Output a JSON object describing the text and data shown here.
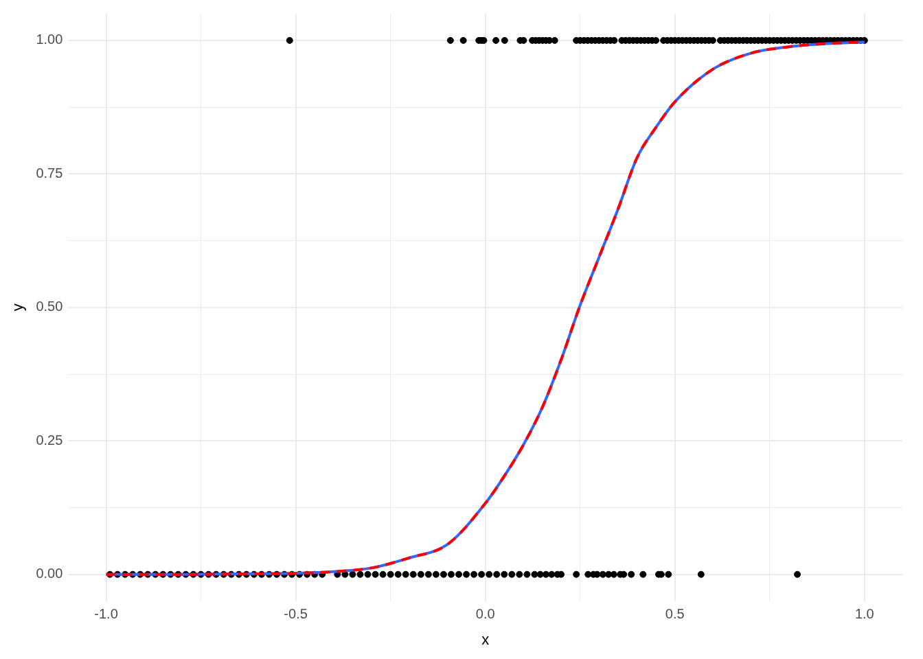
{
  "chart_data": {
    "type": "scatter",
    "xlabel": "x",
    "ylabel": "y",
    "xlim": [
      -1.1,
      1.1
    ],
    "ylim": [
      -0.05,
      1.05
    ],
    "xticks": [
      {
        "value": -1,
        "label": "-1.0"
      },
      {
        "value": -0.75,
        "label": null
      },
      {
        "value": -0.5,
        "label": "-0.5"
      },
      {
        "value": -0.25,
        "label": null
      },
      {
        "value": 0,
        "label": "0.0"
      },
      {
        "value": 0.25,
        "label": null
      },
      {
        "value": 0.5,
        "label": "0.5"
      },
      {
        "value": 0.75,
        "label": null
      },
      {
        "value": 1,
        "label": "1.0"
      }
    ],
    "yticks": [
      {
        "value": 0,
        "label": "0.00"
      },
      {
        "value": 0.125,
        "label": null
      },
      {
        "value": 0.25,
        "label": "0.25"
      },
      {
        "value": 0.375,
        "label": null
      },
      {
        "value": 0.5,
        "label": "0.50"
      },
      {
        "value": 0.625,
        "label": null
      },
      {
        "value": 0.75,
        "label": "0.75"
      },
      {
        "value": 0.875,
        "label": null
      },
      {
        "value": 1,
        "label": "1.00"
      }
    ],
    "grid": true,
    "legend": false,
    "series": [
      {
        "type": "scatter",
        "color": "#000000",
        "marker": "circle",
        "x": [
          -0.516,
          -0.092,
          -0.058,
          -0.017,
          -0.01,
          -0.004,
          0.028,
          0.051,
          0.092,
          0.101,
          0.124,
          0.133,
          0.142,
          0.151,
          0.16,
          0.169,
          0.183,
          0.24,
          0.25,
          0.26,
          0.27,
          0.28,
          0.29,
          0.3,
          0.31,
          0.32,
          0.33,
          0.34,
          0.36,
          0.37,
          0.38,
          0.39,
          0.4,
          0.41,
          0.42,
          0.43,
          0.44,
          0.45,
          0.47,
          0.48,
          0.49,
          0.5,
          0.51,
          0.52,
          0.53,
          0.54,
          0.55,
          0.56,
          0.57,
          0.58,
          0.59,
          0.6,
          0.62,
          0.63,
          0.64,
          0.65,
          0.66,
          0.67,
          0.68,
          0.69,
          0.7,
          0.71,
          0.72,
          0.73,
          0.74,
          0.75,
          0.76,
          0.77,
          0.78,
          0.79,
          0.8,
          0.81,
          0.82,
          0.83,
          0.84,
          0.85,
          0.86,
          0.87,
          0.88,
          0.89,
          0.9,
          0.91,
          0.92,
          0.93,
          0.94,
          0.95,
          0.96,
          0.97,
          0.98,
          0.99,
          1.0,
          -0.99,
          -0.97,
          -0.95,
          -0.93,
          -0.91,
          -0.89,
          -0.87,
          -0.85,
          -0.83,
          -0.81,
          -0.79,
          -0.77,
          -0.75,
          -0.73,
          -0.71,
          -0.69,
          -0.67,
          -0.65,
          -0.63,
          -0.61,
          -0.59,
          -0.57,
          -0.55,
          -0.53,
          -0.51,
          -0.49,
          -0.47,
          -0.45,
          -0.43,
          -0.39,
          -0.37,
          -0.35,
          -0.33,
          -0.31,
          -0.29,
          -0.27,
          -0.25,
          -0.23,
          -0.21,
          -0.19,
          -0.17,
          -0.15,
          -0.13,
          -0.11,
          -0.09,
          -0.07,
          -0.05,
          -0.03,
          -0.01,
          0.01,
          0.03,
          0.05,
          0.07,
          0.09,
          0.11,
          0.13,
          0.145,
          0.16,
          0.175,
          0.19,
          0.2,
          0.24,
          0.271,
          0.285,
          0.295,
          0.31,
          0.325,
          0.339,
          0.356,
          0.365,
          0.385,
          0.416,
          0.457,
          0.464,
          0.483,
          0.569,
          0.823
        ],
        "values": [
          1,
          1,
          1,
          1,
          1,
          1,
          1,
          1,
          1,
          1,
          1,
          1,
          1,
          1,
          1,
          1,
          1,
          1,
          1,
          1,
          1,
          1,
          1,
          1,
          1,
          1,
          1,
          1,
          1,
          1,
          1,
          1,
          1,
          1,
          1,
          1,
          1,
          1,
          1,
          1,
          1,
          1,
          1,
          1,
          1,
          1,
          1,
          1,
          1,
          1,
          1,
          1,
          1,
          1,
          1,
          1,
          1,
          1,
          1,
          1,
          1,
          1,
          1,
          1,
          1,
          1,
          1,
          1,
          1,
          1,
          1,
          1,
          1,
          1,
          1,
          1,
          1,
          1,
          1,
          1,
          1,
          1,
          1,
          1,
          1,
          1,
          1,
          1,
          1,
          1,
          1,
          0,
          0,
          0,
          0,
          0,
          0,
          0,
          0,
          0,
          0,
          0,
          0,
          0,
          0,
          0,
          0,
          0,
          0,
          0,
          0,
          0,
          0,
          0,
          0,
          0,
          0,
          0,
          0,
          0,
          0,
          0,
          0,
          0,
          0,
          0,
          0,
          0,
          0,
          0,
          0,
          0,
          0,
          0,
          0,
          0,
          0,
          0,
          0,
          0,
          0,
          0,
          0,
          0,
          0,
          0,
          0,
          0,
          0,
          0,
          0,
          0,
          0,
          0,
          0,
          0,
          0,
          0,
          0,
          0,
          0,
          0,
          0,
          0,
          0,
          0,
          0,
          0
        ]
      },
      {
        "type": "line",
        "color": "#3366ff",
        "line_style": "solid",
        "marker": "none",
        "x": [
          -1,
          -0.8,
          -0.6,
          -0.5,
          -0.4,
          -0.3,
          -0.2,
          -0.1,
          0,
          0.05,
          0.1,
          0.15,
          0.2,
          0.25,
          0.3,
          0.35,
          0.4,
          0.45,
          0.5,
          0.6,
          0.7,
          0.8,
          0.9,
          1
        ],
        "values": [
          0,
          0,
          0.001,
          0.002,
          0.005,
          0.012,
          0.031,
          0.056,
          0.133,
          0.184,
          0.242,
          0.312,
          0.402,
          0.504,
          0.594,
          0.684,
          0.78,
          0.837,
          0.885,
          0.946,
          0.976,
          0.988,
          0.994,
          0.997
        ]
      },
      {
        "type": "line",
        "color": "#ff0000",
        "line_style": "dashed",
        "marker": "none",
        "x": [
          -1,
          -0.8,
          -0.6,
          -0.5,
          -0.4,
          -0.3,
          -0.2,
          -0.1,
          0,
          0.05,
          0.1,
          0.15,
          0.2,
          0.25,
          0.3,
          0.35,
          0.4,
          0.45,
          0.5,
          0.6,
          0.7,
          0.8,
          0.9,
          1
        ],
        "values": [
          0,
          0,
          0.001,
          0.002,
          0.005,
          0.012,
          0.031,
          0.056,
          0.133,
          0.184,
          0.242,
          0.312,
          0.402,
          0.504,
          0.594,
          0.684,
          0.78,
          0.837,
          0.885,
          0.946,
          0.976,
          0.988,
          0.994,
          0.997
        ]
      }
    ]
  }
}
